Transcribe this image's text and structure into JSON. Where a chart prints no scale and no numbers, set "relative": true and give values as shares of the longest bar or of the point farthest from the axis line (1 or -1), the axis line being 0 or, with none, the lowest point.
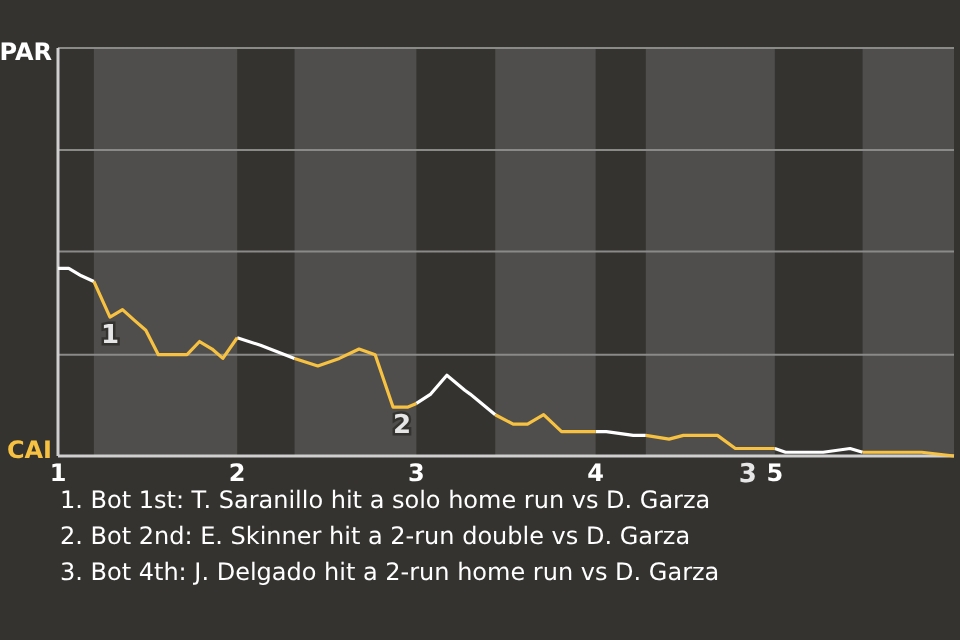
{
  "chart_data": {
    "type": "line",
    "relative": true,
    "x": [
      1.0,
      1.06,
      1.13,
      1.2,
      1.29,
      1.36,
      1.43,
      1.49,
      1.56,
      1.72,
      1.79,
      1.86,
      1.92,
      2.0,
      2.13,
      2.32,
      2.45,
      2.57,
      2.68,
      2.77,
      2.87,
      2.95,
      3.0,
      3.08,
      3.17,
      3.27,
      3.3,
      3.44,
      3.54,
      3.62,
      3.71,
      3.81,
      4.0,
      4.06,
      4.21,
      4.28,
      4.41,
      4.49,
      4.68,
      4.78,
      5.0,
      5.06,
      5.2,
      5.27,
      5.42,
      5.49,
      5.82,
      6.0
    ],
    "series": [
      {
        "name": "PAR",
        "color": "#ffffff",
        "values": [
          1,
          1,
          0.96,
          0.93,
          null,
          null,
          null,
          null,
          null,
          null,
          null,
          null,
          null,
          0.63,
          0.59,
          0.52,
          null,
          null,
          null,
          null,
          null,
          null,
          0.28,
          0.33,
          0.43,
          0.35,
          0.33,
          0.22,
          null,
          null,
          null,
          null,
          0.13,
          0.13,
          0.11,
          0.11,
          null,
          null,
          null,
          null,
          0.04,
          0.02,
          0.02,
          0.02,
          0.04,
          0.02,
          null,
          null
        ]
      },
      {
        "name": "CAI",
        "color": "#f7c241",
        "values": [
          null,
          null,
          null,
          0.93,
          0.74,
          0.78,
          0.72,
          0.67,
          0.54,
          0.54,
          0.61,
          0.57,
          0.52,
          0.63,
          null,
          0.52,
          0.48,
          0.52,
          0.57,
          0.54,
          0.26,
          0.26,
          0.28,
          null,
          null,
          null,
          null,
          0.22,
          0.17,
          0.17,
          0.22,
          0.13,
          0.13,
          null,
          null,
          0.11,
          0.09,
          0.11,
          0.11,
          0.04,
          0.04,
          null,
          null,
          null,
          null,
          0.02,
          0.02,
          0
        ]
      }
    ],
    "legend": "left",
    "xlim": [
      1,
      6
    ],
    "xticks": [
      1,
      2,
      3,
      4,
      5
    ],
    "ref_lines": [
      {
        "axis": "y",
        "value": 0.54,
        "color": "#8a8a88"
      },
      {
        "axis": "y",
        "value": 1.09,
        "color": "#8a8a88"
      },
      {
        "axis": "y",
        "value": 1.63,
        "color": "#8a8a88"
      }
    ],
    "bands": [
      {
        "axis": "x",
        "from": 1.2,
        "to": 2.0,
        "color": "#4f4e4c"
      },
      {
        "axis": "x",
        "from": 2.32,
        "to": 3.0,
        "color": "#4f4e4c"
      },
      {
        "axis": "x",
        "from": 3.44,
        "to": 4.0,
        "color": "#4f4e4c"
      },
      {
        "axis": "x",
        "from": 4.28,
        "to": 5.0,
        "color": "#4f4e4c"
      },
      {
        "axis": "x",
        "from": 5.49,
        "to": 6.0,
        "color": "#4f4e4c"
      }
    ],
    "annotations": [
      {
        "text": "1",
        "x": 1.29,
        "y": 0.74
      },
      {
        "text": "2",
        "x": 2.92,
        "y": 0.26
      },
      {
        "text": "3",
        "x": 4.85,
        "y": 0
      },
      "1. Bot 1st: T. Saranillo hit a solo home run vs D. Garza",
      "2. Bot 2nd: E. Skinner hit a 2-run double vs D. Garza",
      "3. Bot 4th: J. Delgado hit a 2-run home run vs D. Garza"
    ]
  }
}
